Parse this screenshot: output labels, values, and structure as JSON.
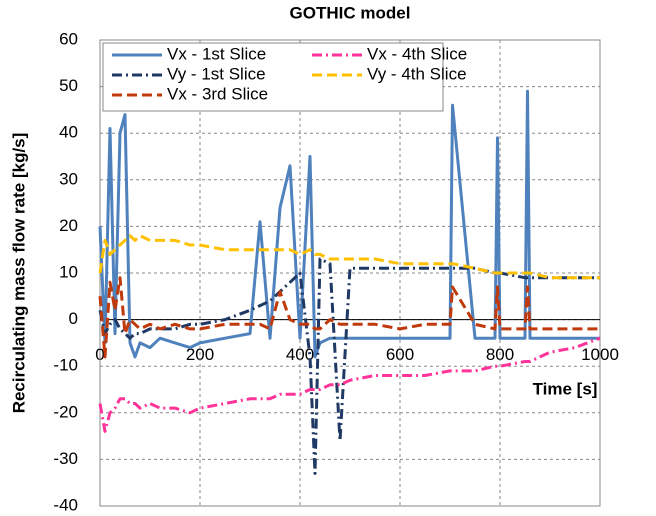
{
  "chart_data": {
    "type": "line",
    "title": "GOTHIC model",
    "x_label": "Time [s]",
    "y_label": "Recirculating mass flow rate  [kg/s]",
    "x": [
      0,
      10,
      20,
      30,
      40,
      50,
      60,
      70,
      80,
      100,
      120,
      150,
      180,
      200,
      250,
      300,
      320,
      340,
      360,
      380,
      400,
      420,
      430,
      440,
      460,
      480,
      500,
      550,
      600,
      650,
      700,
      705,
      750,
      790,
      795,
      800,
      850,
      855,
      860,
      900,
      950,
      1000
    ],
    "series": [
      {
        "name": "Vx - 1st Slice",
        "color": "#4f81bd",
        "style": "solid",
        "values": [
          20,
          -5,
          41,
          -3,
          40,
          44,
          -5,
          -8,
          -5,
          -6,
          -4,
          -5,
          -6,
          -5,
          -4,
          -3,
          21,
          -4,
          24,
          33,
          -4,
          35,
          -8,
          -5,
          -4,
          -4,
          -4,
          -4,
          -4,
          -4,
          -4,
          46,
          -4,
          -4,
          39,
          -4,
          -4,
          49,
          -4,
          -4,
          -4,
          -4
        ]
      },
      {
        "name": "Vy - 1st Slice",
        "color": "#1f3864",
        "style": "dashdot",
        "values": [
          2,
          -3,
          -1,
          0,
          -2,
          -3,
          -4,
          -3,
          -3,
          -2,
          -2,
          -2,
          -1,
          -1,
          0,
          2,
          3,
          4,
          6,
          8,
          10,
          -8,
          -33,
          13,
          12,
          -26,
          11,
          11,
          11,
          11,
          11,
          11,
          11,
          10,
          10,
          10,
          9,
          9,
          9,
          9,
          9,
          9
        ]
      },
      {
        "name": "Vx - 3rd Slice",
        "color": "#c0390b",
        "style": "dash",
        "values": [
          5,
          -8,
          8,
          2,
          9,
          -3,
          0,
          -1,
          -2,
          -1,
          -2,
          -1,
          -2,
          -2,
          -1,
          -1,
          -1,
          -2,
          6,
          0,
          -1,
          -1,
          -2,
          -2,
          0,
          -1,
          -1,
          -1,
          -2,
          -1,
          -1,
          7,
          -1,
          -2,
          7,
          -2,
          -2,
          7,
          -2,
          -2,
          -2,
          -2
        ]
      },
      {
        "name": "Vx - 4th Slice",
        "color": "#ff3399",
        "style": "dashdot",
        "values": [
          -18,
          -24,
          -20,
          -19,
          -17,
          -17,
          -18,
          -18,
          -19,
          -18,
          -19,
          -19,
          -20,
          -19,
          -18,
          -17,
          -17,
          -17,
          -16,
          -16,
          -16,
          -15,
          -15,
          -15,
          -14,
          -14,
          -13,
          -12,
          -12,
          -12,
          -11,
          -11,
          -11,
          -10,
          -10,
          -10,
          -9,
          -9,
          -9,
          -7,
          -6,
          -4
        ]
      },
      {
        "name": "Vy - 4th Slice",
        "color": "#ffc000",
        "style": "dash",
        "values": [
          10,
          17,
          14,
          15,
          16,
          17,
          18,
          17,
          18,
          17,
          17,
          17,
          16,
          16,
          15,
          15,
          15,
          15,
          15,
          15,
          14,
          15,
          14,
          14,
          13,
          13,
          13,
          13,
          12,
          12,
          12,
          12,
          11,
          10,
          10,
          10,
          10,
          10,
          10,
          9,
          9,
          9
        ]
      }
    ],
    "xlim": [
      0,
      1000
    ],
    "xticks": [
      0,
      200,
      400,
      600,
      800,
      1000
    ],
    "ylim": [
      -40,
      60
    ],
    "yticks": [
      -40,
      -30,
      -20,
      -10,
      0,
      10,
      20,
      30,
      40,
      50,
      60
    ],
    "grid": true,
    "legend": "upper left"
  }
}
